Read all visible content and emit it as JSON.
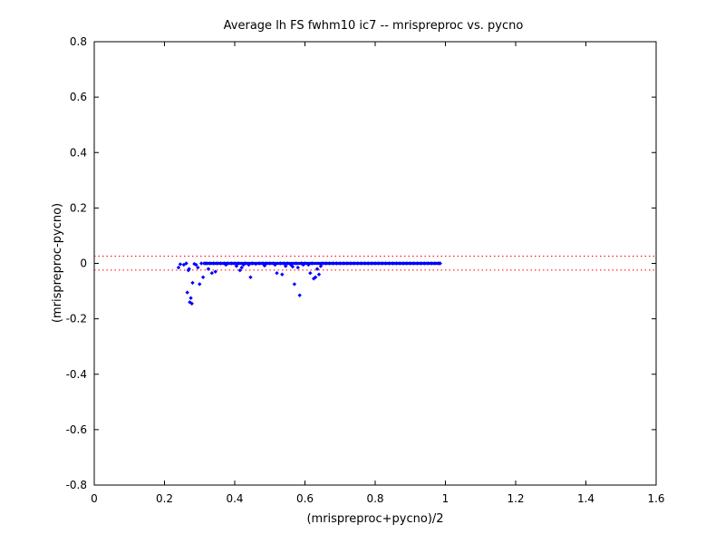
{
  "chart_data": {
    "type": "scatter",
    "title": "Average lh FS fwhm10 ic7 -- mrispreproc vs. pycno",
    "xlabel": "(mrispreproc+pycno)/2",
    "ylabel": "(mrispreproc-pycno)",
    "xlim": [
      0,
      1.6
    ],
    "ylim": [
      -0.8,
      0.8
    ],
    "xticks": [
      0,
      0.2,
      0.4,
      0.6,
      0.8,
      1,
      1.2,
      1.4,
      1.6
    ],
    "yticks": [
      -0.8,
      -0.6,
      -0.4,
      -0.2,
      0,
      0.2,
      0.4,
      0.6,
      0.8
    ],
    "xtick_labels": [
      "0",
      "0.2",
      "0.4",
      "0.6",
      "0.8",
      "1",
      "1.2",
      "1.4",
      "1.6"
    ],
    "ytick_labels": [
      "-0.8",
      "-0.6",
      "-0.4",
      "-0.2",
      "0",
      "0.2",
      "0.4",
      "0.6",
      "0.8"
    ],
    "grid": false,
    "marker_color": "#0000ff",
    "reference_line_color": "#ff0000",
    "reference_lines_y": [
      0.026,
      -0.024
    ],
    "series": [
      {
        "marker": "dot",
        "points": [
          [
            0.24,
            -0.015
          ],
          [
            0.245,
            -0.003
          ],
          [
            0.255,
            -0.005
          ],
          [
            0.262,
            0.0
          ],
          [
            0.265,
            -0.105
          ],
          [
            0.268,
            -0.025
          ],
          [
            0.27,
            -0.02
          ],
          [
            0.272,
            -0.14
          ],
          [
            0.275,
            -0.125
          ],
          [
            0.278,
            -0.145
          ],
          [
            0.28,
            -0.07
          ],
          [
            0.285,
            -0.002
          ],
          [
            0.29,
            -0.005
          ],
          [
            0.295,
            -0.015
          ],
          [
            0.3,
            -0.075
          ],
          [
            0.305,
            0.0
          ],
          [
            0.31,
            -0.05
          ],
          [
            0.315,
            0.0
          ],
          [
            0.32,
            0.0
          ],
          [
            0.325,
            -0.02
          ],
          [
            0.33,
            0.0
          ],
          [
            0.335,
            -0.035
          ],
          [
            0.34,
            0.0
          ],
          [
            0.345,
            -0.03
          ],
          [
            0.35,
            0.0
          ],
          [
            0.36,
            0.0
          ],
          [
            0.37,
            0.0
          ],
          [
            0.375,
            -0.005
          ],
          [
            0.38,
            0.0
          ],
          [
            0.39,
            0.0
          ],
          [
            0.4,
            0.0
          ],
          [
            0.405,
            -0.01
          ],
          [
            0.41,
            0.0
          ],
          [
            0.415,
            -0.025
          ],
          [
            0.42,
            -0.015
          ],
          [
            0.425,
            -0.005
          ],
          [
            0.43,
            0.0
          ],
          [
            0.44,
            -0.005
          ],
          [
            0.445,
            -0.05
          ],
          [
            0.45,
            0.0
          ],
          [
            0.46,
            -0.002
          ],
          [
            0.47,
            0.0
          ],
          [
            0.48,
            0.0
          ],
          [
            0.485,
            -0.008
          ],
          [
            0.49,
            0.0
          ],
          [
            0.5,
            0.0
          ],
          [
            0.51,
            0.0
          ],
          [
            0.515,
            -0.005
          ],
          [
            0.52,
            -0.035
          ],
          [
            0.53,
            0.0
          ],
          [
            0.535,
            -0.04
          ],
          [
            0.54,
            0.0
          ],
          [
            0.545,
            -0.01
          ],
          [
            0.55,
            0.0
          ],
          [
            0.56,
            -0.005
          ],
          [
            0.565,
            -0.012
          ],
          [
            0.57,
            -0.075
          ],
          [
            0.575,
            0.0
          ],
          [
            0.58,
            -0.015
          ],
          [
            0.585,
            -0.115
          ],
          [
            0.59,
            0.0
          ],
          [
            0.595,
            -0.005
          ],
          [
            0.6,
            0.0
          ],
          [
            0.61,
            -0.005
          ],
          [
            0.615,
            -0.035
          ],
          [
            0.62,
            0.0
          ],
          [
            0.625,
            -0.055
          ],
          [
            0.63,
            -0.05
          ],
          [
            0.635,
            -0.02
          ],
          [
            0.64,
            -0.04
          ],
          [
            0.645,
            -0.01
          ],
          [
            0.65,
            0.0
          ],
          [
            0.66,
            0.0
          ],
          [
            0.67,
            0.0
          ],
          [
            0.68,
            0.0
          ],
          [
            0.69,
            0.0
          ],
          [
            0.7,
            0.0
          ],
          [
            0.71,
            0.0
          ],
          [
            0.72,
            0.0
          ],
          [
            0.73,
            0.0
          ],
          [
            0.74,
            0.0
          ],
          [
            0.75,
            0.0
          ],
          [
            0.76,
            0.0
          ],
          [
            0.77,
            0.0
          ],
          [
            0.78,
            0.0
          ],
          [
            0.79,
            0.0
          ],
          [
            0.8,
            0.0
          ],
          [
            0.81,
            0.0
          ],
          [
            0.82,
            0.0
          ],
          [
            0.83,
            0.0
          ],
          [
            0.84,
            0.0
          ],
          [
            0.85,
            0.0
          ],
          [
            0.86,
            0.0
          ],
          [
            0.87,
            0.0
          ],
          [
            0.88,
            0.0
          ],
          [
            0.89,
            0.0
          ],
          [
            0.9,
            0.0
          ],
          [
            0.91,
            0.0
          ],
          [
            0.92,
            0.0
          ],
          [
            0.93,
            0.0
          ],
          [
            0.94,
            0.0
          ],
          [
            0.95,
            0.0
          ],
          [
            0.96,
            0.0
          ],
          [
            0.97,
            0.0
          ],
          [
            0.98,
            0.0
          ],
          [
            0.985,
            0.0
          ]
        ]
      }
    ]
  }
}
